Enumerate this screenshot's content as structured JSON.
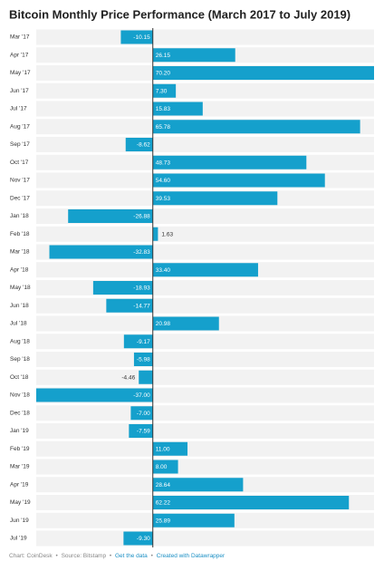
{
  "chart_data": {
    "type": "bar",
    "orientation": "horizontal",
    "title": "Bitcoin Monthly Price Performance (March 2017 to July 2019)",
    "categories": [
      "Mar '17",
      "Apr '17",
      "May '17",
      "Jun '17",
      "Jul '17",
      "Aug '17",
      "Sep '17",
      "Oct '17",
      "Nov '17",
      "Dec '17",
      "Jan '18",
      "Feb '18",
      "Mar '18",
      "Apr '18",
      "May '18",
      "Jun '18",
      "Jul '18",
      "Aug '18",
      "Sep '18",
      "Oct '18",
      "Nov '18",
      "Dec '18",
      "Jan '19",
      "Feb '19",
      "Mar '19",
      "Apr '19",
      "May '19",
      "Jun '19",
      "Jul '19"
    ],
    "values": [
      -10.15,
      26.15,
      70.2,
      7.3,
      15.83,
      65.78,
      -8.62,
      48.73,
      54.6,
      39.53,
      -26.88,
      1.63,
      -32.83,
      33.4,
      -18.93,
      -14.77,
      20.98,
      -9.17,
      -5.98,
      -4.46,
      -37,
      -7,
      -7.59,
      11,
      8,
      28.64,
      62.22,
      25.89,
      -9.3
    ],
    "value_labels": [
      "-10.15",
      "26.15",
      "70.20",
      "7.30",
      "15.83",
      "65.78",
      "-8.62",
      "48.73",
      "54.60",
      "39.53",
      "-26.88",
      "1.63",
      "-32.83",
      "33.40",
      "-18.93",
      "-14.77",
      "20.98",
      "-9.17",
      "-5.98",
      "-4.46",
      "-37.00",
      "-7.00",
      "-7.59",
      "11.00",
      "8.00",
      "28.64",
      "62.22",
      "25.89",
      "-9.30"
    ],
    "color": "#15a0cc",
    "footer": {
      "credit": "Chart: CoinDesk",
      "separator": "•",
      "source": "Source: Bitstamp",
      "get_data": "Get the data",
      "created": "Created with Datawrapper"
    }
  }
}
